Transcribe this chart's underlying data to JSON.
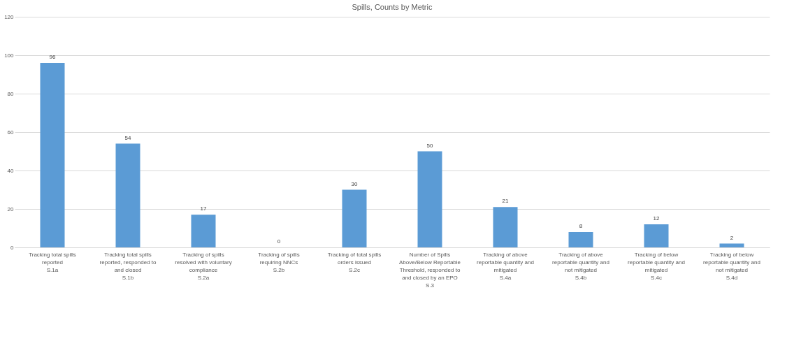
{
  "chart_data": {
    "type": "bar",
    "title": "Spills, Counts by Metric",
    "categories": [
      "Tracking total spills reported S.1a",
      "Tracking total spills reported, responded to and closed S.1b",
      "Tracking of spills resolved with voluntary compliance S.2a",
      "Tracking of spills requiring NNCs S.2b",
      "Tracking of total spills orders issued S.2c",
      "Number of Spills Above/Below Reportable Threshold, responded to and closed by an EPO S.3",
      "Tracking of above reportable quantity and mitigated S.4a",
      "Tracking of above reportable quantity and not mitigated S.4b",
      "Tracking of below reportable quantity and mitigated S.4c",
      "Tracking of below reportable quantity and not mitigated S.4d"
    ],
    "values": [
      96,
      54,
      17,
      0,
      30,
      50,
      21,
      8,
      12,
      2
    ],
    "color": "#5b9bd5",
    "ylim": [
      0,
      120
    ],
    "yticks": [
      0,
      20,
      40,
      60,
      80,
      100,
      120
    ],
    "grid": "y",
    "data_labels": true
  }
}
